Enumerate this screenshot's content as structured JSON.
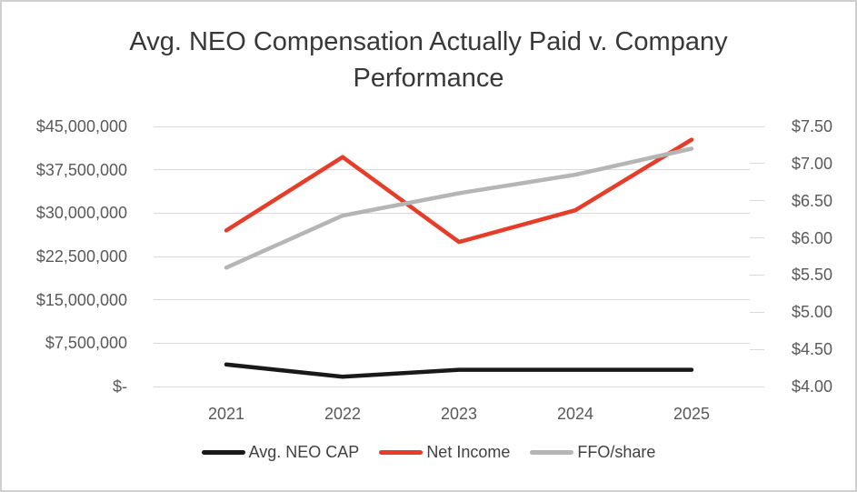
{
  "chart_data": {
    "type": "line",
    "title": "Avg. NEO Compensation Actually Paid v. Company Performance",
    "title_lines": [
      "Avg. NEO Compensation Actually Paid v. Company",
      "Performance"
    ],
    "categories": [
      "2021",
      "2022",
      "2023",
      "2024",
      "2025"
    ],
    "series": [
      {
        "name": "Avg. NEO CAP",
        "axis": "left",
        "color": "#191919",
        "values": [
          3800000,
          1700000,
          2900000,
          2900000,
          2900000
        ]
      },
      {
        "name": "Net Income",
        "axis": "left",
        "color": "#e63c28",
        "values": [
          27000000,
          39700000,
          25000000,
          30500000,
          42700000
        ]
      },
      {
        "name": "FFO/share",
        "axis": "right",
        "color": "#b5b5b5",
        "values": [
          5.6,
          6.3,
          6.6,
          6.85,
          7.2
        ]
      }
    ],
    "left_axis": {
      "ticks": [
        "$45,000,000",
        "$37,500,000",
        "$30,000,000",
        "$22,500,000",
        "$15,000,000",
        "$7,500,000",
        "$-"
      ],
      "min": 0,
      "max": 45000000
    },
    "right_axis": {
      "ticks": [
        "$7.50",
        "$7.00",
        "$6.50",
        "$6.00",
        "$5.50",
        "$5.00",
        "$4.50",
        "$4.00"
      ],
      "min": 4.0,
      "max": 7.5
    },
    "legend_position": "bottom",
    "grid": true,
    "colors": {
      "gridline": "#d9d9d9",
      "axis_text": "#595959",
      "title_text": "#383838"
    }
  }
}
